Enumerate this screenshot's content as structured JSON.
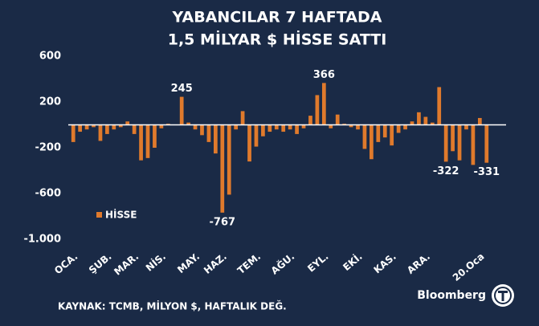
{
  "chart_data": {
    "type": "bar",
    "title": [
      "YABANCILAR 7 HAFTADA",
      "1,5 MİLYAR $ HİSSE SATTI"
    ],
    "categories": [
      "OCA.",
      null,
      null,
      null,
      null,
      "ŞUB.",
      null,
      null,
      null,
      "MAR.",
      null,
      null,
      null,
      "NİS.",
      null,
      null,
      null,
      null,
      "MAY.",
      null,
      null,
      null,
      "HAZ.",
      null,
      null,
      null,
      null,
      "TEM.",
      null,
      null,
      null,
      null,
      "AĞU.",
      null,
      null,
      null,
      null,
      "EYL.",
      null,
      null,
      null,
      null,
      "EKİ.",
      null,
      null,
      null,
      null,
      "KAS.",
      null,
      null,
      null,
      null,
      "ARA.",
      null,
      null,
      null,
      null,
      null,
      null,
      null,
      "20.Oca",
      null
    ],
    "series": [
      {
        "name": "HİSSE",
        "color": "#e07a2c",
        "values": [
          -150,
          -60,
          -40,
          -20,
          -140,
          -80,
          -40,
          -20,
          30,
          -80,
          -310,
          -290,
          -200,
          -30,
          10,
          0,
          245,
          20,
          -40,
          -90,
          -150,
          -250,
          -767,
          -610,
          -40,
          120,
          -320,
          -190,
          -100,
          -60,
          -40,
          -60,
          -40,
          -80,
          -30,
          80,
          260,
          366,
          -30,
          90,
          10,
          -20,
          -40,
          -210,
          -300,
          -150,
          -110,
          -180,
          -70,
          -40,
          30,
          110,
          70,
          20,
          330,
          -322,
          -230,
          -310,
          -40,
          -350,
          60,
          -331
        ],
        "value_labels": [
          null,
          null,
          null,
          null,
          null,
          null,
          null,
          null,
          null,
          null,
          null,
          null,
          null,
          null,
          null,
          null,
          "245",
          null,
          null,
          null,
          null,
          null,
          "-767",
          null,
          null,
          null,
          null,
          null,
          null,
          null,
          null,
          null,
          null,
          null,
          null,
          null,
          null,
          "366",
          null,
          null,
          null,
          null,
          null,
          null,
          null,
          null,
          null,
          null,
          null,
          null,
          null,
          null,
          null,
          null,
          null,
          "-322",
          null,
          null,
          null,
          null,
          null,
          "-331"
        ]
      }
    ],
    "ylim": [
      -1000,
      600
    ],
    "yticks": [
      600,
      200,
      -200,
      -600,
      {
        "value": -1000,
        "label": "-1.000"
      }
    ],
    "source": "KAYNAK: TCMB, MİLYON $, HAFTALIK DEĞ.",
    "brand": "Bloomberg"
  }
}
